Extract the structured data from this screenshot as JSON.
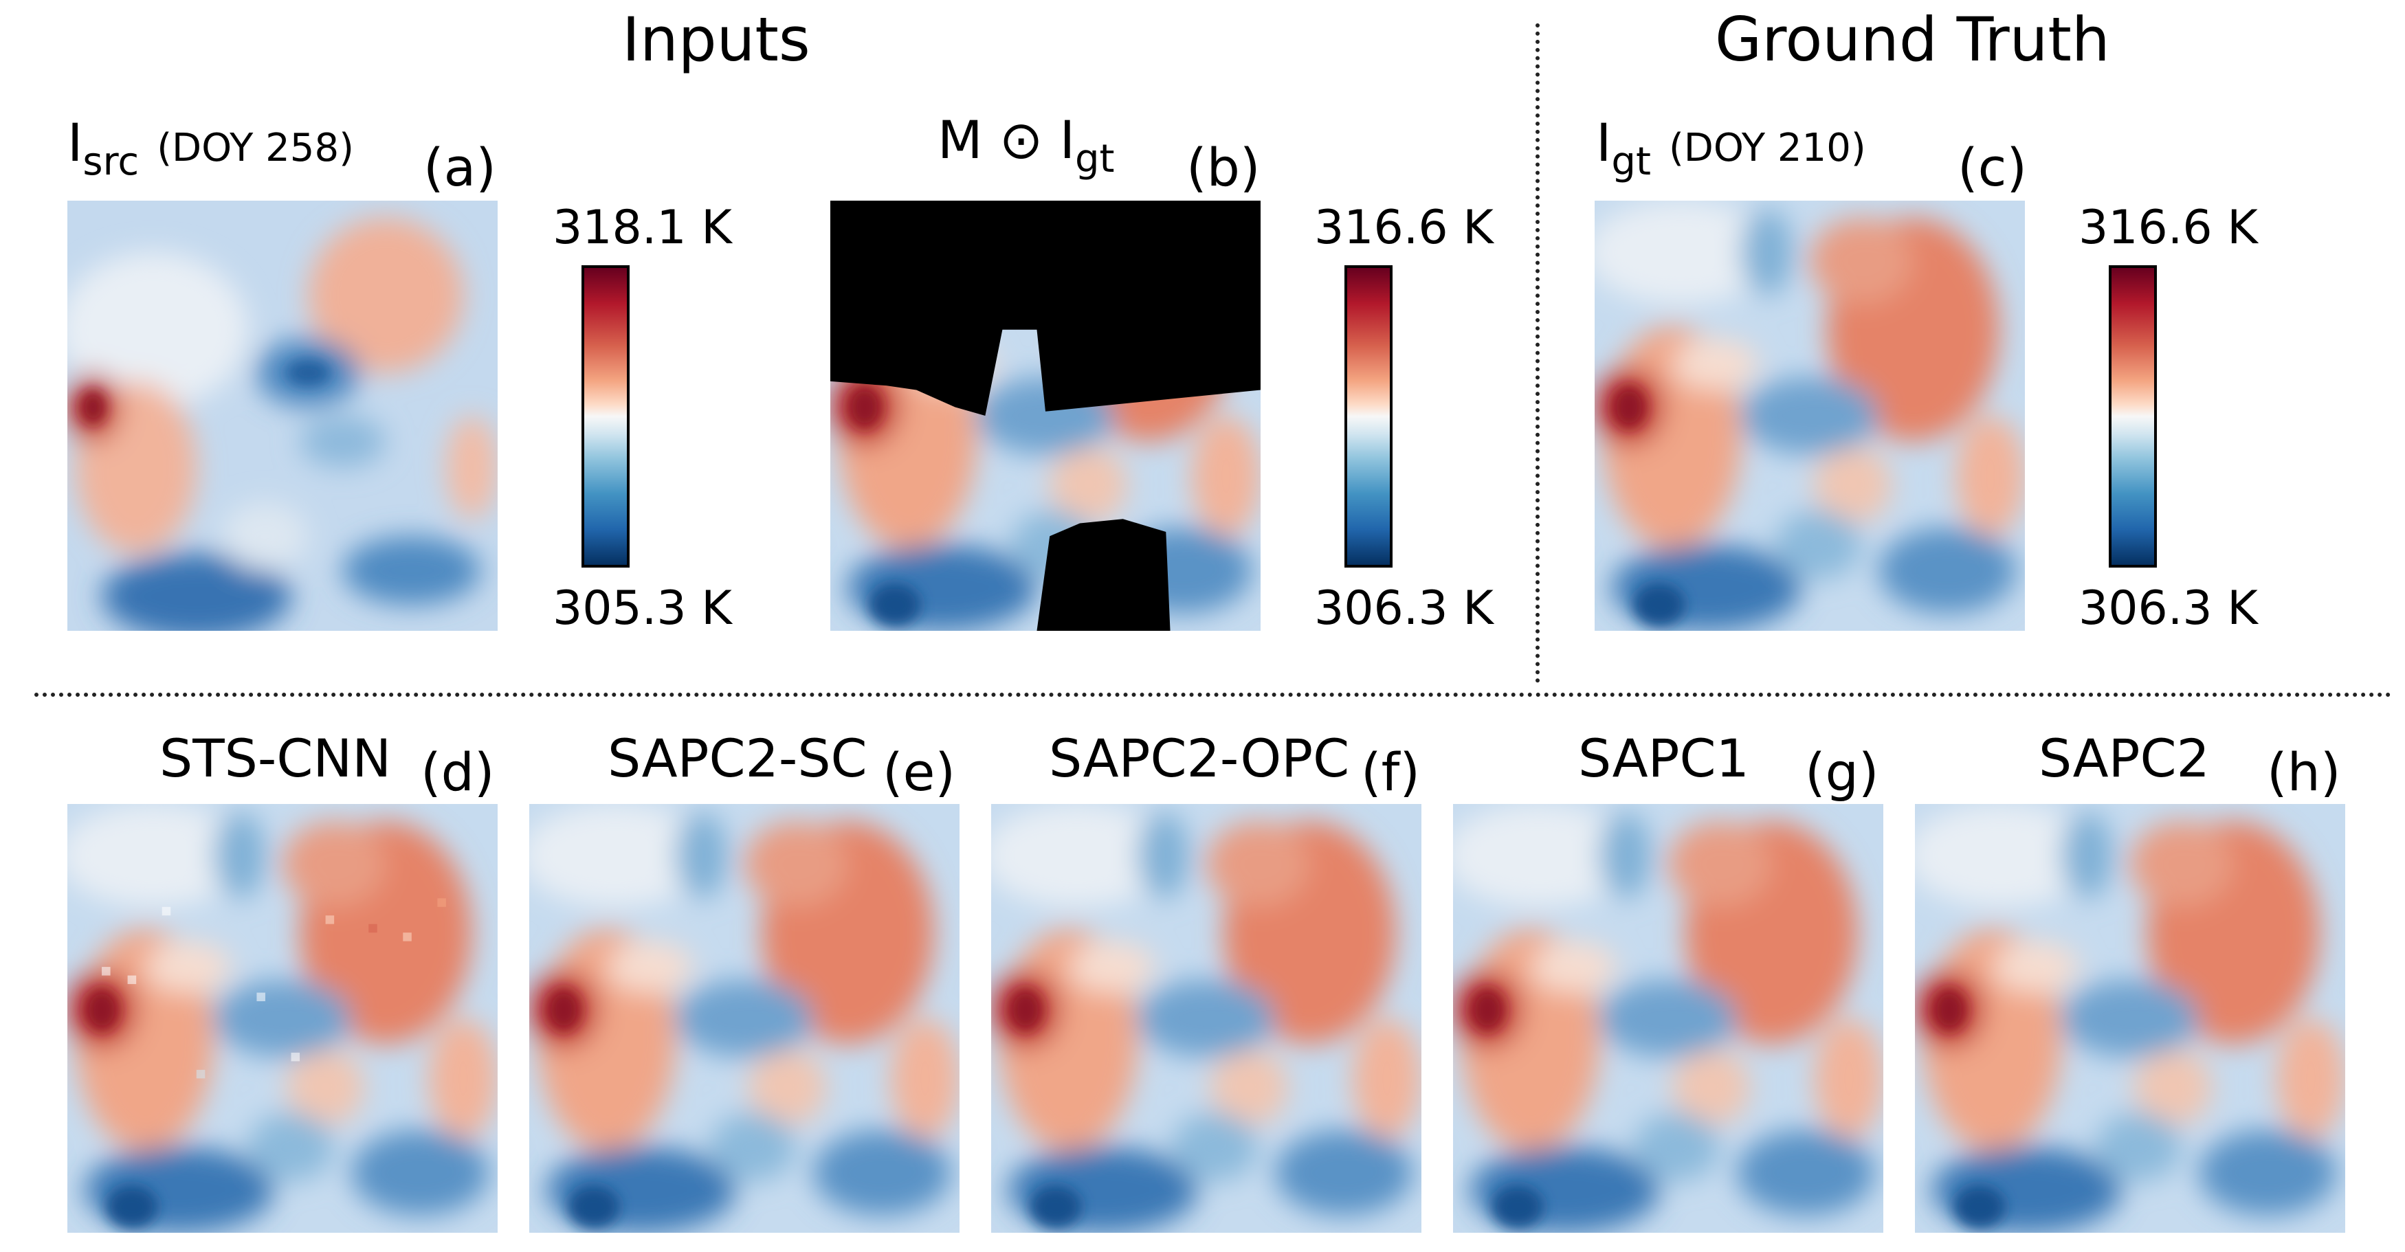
{
  "headers": {
    "inputs": "Inputs",
    "ground_truth": "Ground Truth"
  },
  "panels": {
    "a": {
      "letter": "(a)",
      "symbol": "I",
      "sub": "src",
      "doy": "(DOY 258)"
    },
    "b": {
      "letter": "(b)",
      "prefix": "M ⊙ I",
      "sub": "gt"
    },
    "c": {
      "letter": "(c)",
      "symbol": "I",
      "sub": "gt",
      "doy": "(DOY 210)"
    },
    "d": {
      "letter": "(d)",
      "title": "STS-CNN"
    },
    "e": {
      "letter": "(e)",
      "title": "SAPC2-SC"
    },
    "f": {
      "letter": "(f)",
      "title": "SAPC2-OPC"
    },
    "g": {
      "letter": "(g)",
      "title": "SAPC1"
    },
    "h": {
      "letter": "(h)",
      "title": "SAPC2"
    }
  },
  "colorbars": [
    {
      "max": "318.1 K",
      "min": "305.3 K",
      "colormap": "RdBu_r"
    },
    {
      "max": "316.6 K",
      "min": "306.3 K",
      "colormap": "RdBu_r"
    },
    {
      "max": "316.6 K",
      "min": "306.3 K",
      "colormap": "RdBu_r"
    }
  ],
  "colors": {
    "hot": "#b2182b",
    "cold": "#2166ac",
    "mask": "#000000"
  }
}
